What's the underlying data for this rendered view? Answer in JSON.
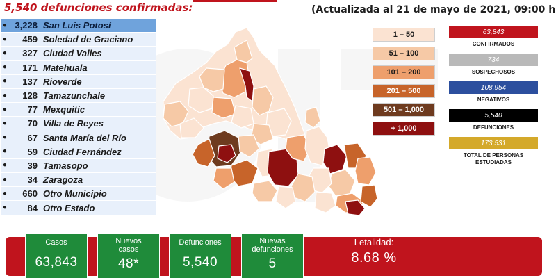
{
  "header": {
    "title": "5,540 defunciones confirmadas:",
    "update_text": "(Actualizada al 21 de mayo de 2021, 09:00 hrs.)"
  },
  "municipalities": [
    {
      "count": "3,228",
      "name": "San Luis Potosí"
    },
    {
      "count": "459",
      "name": "Soledad de Graciano"
    },
    {
      "count": "327",
      "name": "Ciudad Valles"
    },
    {
      "count": "171",
      "name": "Matehuala"
    },
    {
      "count": "137",
      "name": "Rioverde"
    },
    {
      "count": "128",
      "name": "Tamazunchale"
    },
    {
      "count": "77",
      "name": "Mexquitic"
    },
    {
      "count": "70",
      "name": "Villa de Reyes"
    },
    {
      "count": "67",
      "name": "Santa María del Río"
    },
    {
      "count": "59",
      "name": "Ciudad Fernández"
    },
    {
      "count": "39",
      "name": "Tamasopo"
    },
    {
      "count": "34",
      "name": "Zaragoza"
    },
    {
      "count": "660",
      "name": "Otro Municipio"
    },
    {
      "count": "84",
      "name": "Otro Estado"
    }
  ],
  "legend": [
    {
      "label": "1 – 50",
      "bg": "#fbe3d2",
      "fg": "#1a1a1a"
    },
    {
      "label": "51 – 100",
      "bg": "#f6c9a6",
      "fg": "#1a1a1a"
    },
    {
      "label": "101 – 200",
      "bg": "#ee9f6c",
      "fg": "#1a1a1a"
    },
    {
      "label": "201 – 500",
      "bg": "#c7642a",
      "fg": "#ffffff"
    },
    {
      "label": "501 – 1,000",
      "bg": "#6e3b1f",
      "fg": "#ffffff"
    },
    {
      "label": "+ 1,000",
      "bg": "#8e1010",
      "fg": "#ffffff"
    }
  ],
  "stats": [
    {
      "value": "63,843",
      "caption": "CONFIRMADOS",
      "color": "#c0141d"
    },
    {
      "value": "734",
      "caption": "SOSPECHOSOS",
      "color": "#b9b9b9"
    },
    {
      "value": "108,954",
      "caption": "NEGATIVOS",
      "color": "#2c4f9e"
    },
    {
      "value": "5,540",
      "caption": "DEFUNCIONES",
      "color": "#000000"
    },
    {
      "value": "173,531",
      "caption": "TOTAL DE PERSONAS ESTUDIADAS",
      "color": "#d4a92a"
    }
  ],
  "summary": {
    "casos_label": "Casos",
    "casos_value": "63,843",
    "nuevos_casos_label": "Nuevos casos",
    "nuevos_casos_value": "48*",
    "defunciones_label": "Defunciones",
    "defunciones_value": "5,540",
    "nuevas_defunciones_label": "Nuevas defunciones",
    "nuevas_defunciones_value": "5",
    "letalidad_label": "Letalidad:",
    "letalidad_value": "8.68 %"
  },
  "colors": {
    "accent_red": "#c0141d",
    "card_green": "#1f8b3a",
    "list_highlight": "#6fa3dc",
    "list_bg": "#e8f0fb"
  }
}
